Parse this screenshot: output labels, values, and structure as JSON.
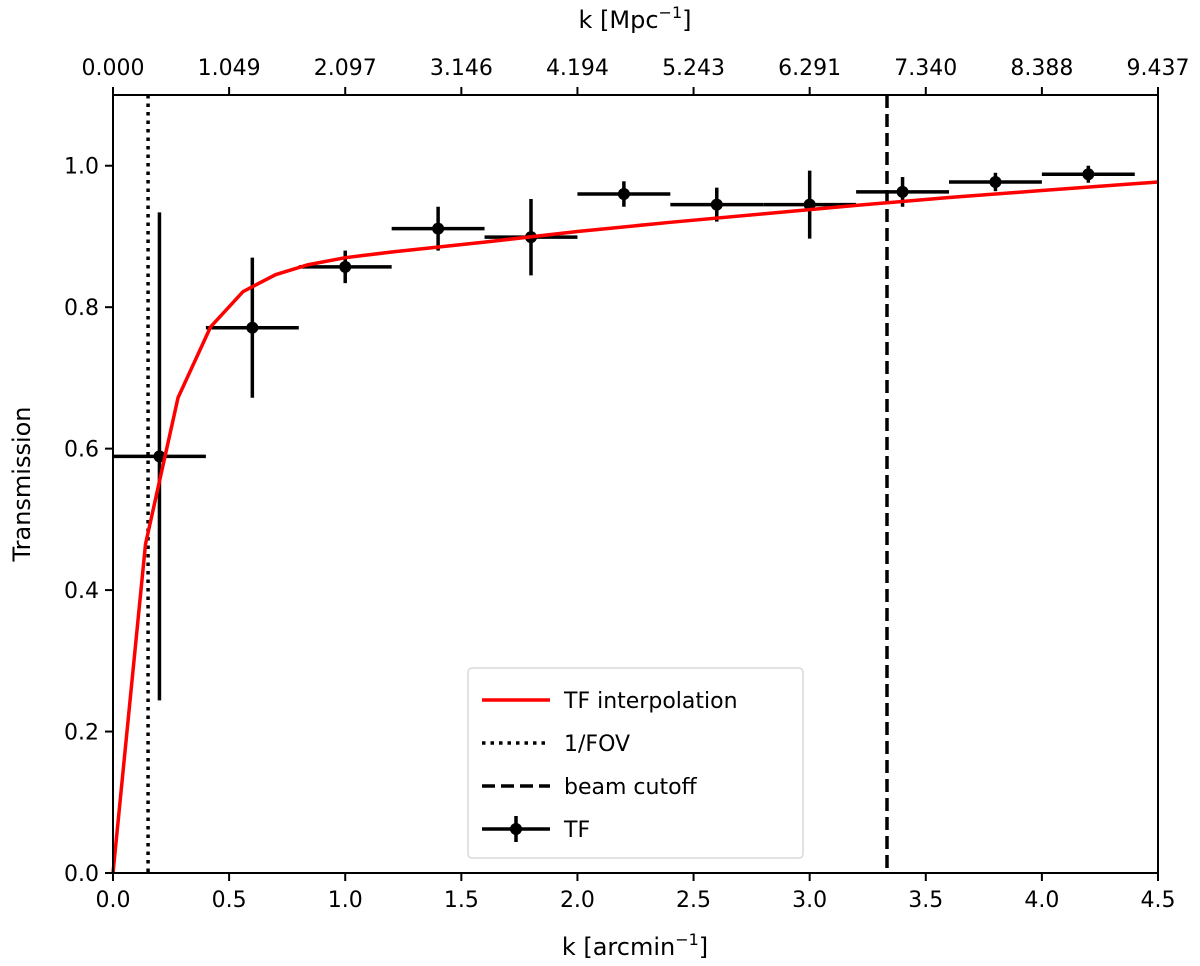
{
  "chart_data": {
    "type": "line",
    "xlabel": "k [arcmin",
    "xlabel_sup": "−1",
    "xlabel_end": "]",
    "top_xlabel": "k [Mpc",
    "top_xlabel_sup": "−1",
    "top_xlabel_end": "]",
    "ylabel": "Transmission",
    "xlim": [
      0,
      4.5
    ],
    "ylim": [
      0,
      1.1
    ],
    "x_ticks": [
      0.0,
      0.5,
      1.0,
      1.5,
      2.0,
      2.5,
      3.0,
      3.5,
      4.0,
      4.5
    ],
    "x_tick_labels": [
      "0.0",
      "0.5",
      "1.0",
      "1.5",
      "2.0",
      "2.5",
      "3.0",
      "3.5",
      "4.0",
      "4.5"
    ],
    "y_ticks": [
      0.0,
      0.2,
      0.4,
      0.6,
      0.8,
      1.0
    ],
    "y_tick_labels": [
      "0.0",
      "0.2",
      "0.4",
      "0.6",
      "0.8",
      "1.0"
    ],
    "top_x_ticks": [
      0.0,
      0.5,
      1.0,
      1.5,
      2.0,
      2.5,
      3.0,
      3.5,
      4.0,
      4.5
    ],
    "top_x_tick_labels": [
      "0.000",
      "1.049",
      "2.097",
      "3.146",
      "4.194",
      "5.243",
      "6.291",
      "7.340",
      "8.388",
      "9.437"
    ],
    "series": [
      {
        "name": "TF interpolation",
        "color": "#ff0000",
        "x": [
          0,
          0.14,
          0.28,
          0.42,
          0.56,
          0.7,
          0.84,
          1.0,
          1.2,
          1.6,
          2.0,
          2.4,
          2.8,
          3.2,
          3.6,
          4.0,
          4.5
        ],
        "y": [
          0,
          0.465,
          0.672,
          0.772,
          0.822,
          0.846,
          0.86,
          0.87,
          0.878,
          0.892,
          0.907,
          0.92,
          0.932,
          0.944,
          0.955,
          0.965,
          0.977
        ]
      },
      {
        "name": "TF",
        "color": "#000000",
        "x": [
          0.2,
          0.6,
          1.0,
          1.4,
          1.8,
          2.2,
          2.6,
          3.0,
          3.4,
          3.8,
          4.2
        ],
        "y": [
          0.589,
          0.771,
          0.857,
          0.911,
          0.899,
          0.96,
          0.945,
          0.945,
          0.963,
          0.977,
          0.988
        ],
        "xerr": 0.2,
        "yerr": [
          0.345,
          0.099,
          0.023,
          0.031,
          0.054,
          0.018,
          0.024,
          0.048,
          0.021,
          0.013,
          0.012
        ]
      }
    ],
    "vlines": [
      {
        "name": "1/FOV",
        "x": 0.151,
        "style": "dotted"
      },
      {
        "name": "beam cutoff",
        "x": 3.333,
        "style": "dashed"
      }
    ],
    "legend": {
      "placement": "lower-center",
      "entries": [
        "TF interpolation",
        "1/FOV",
        "beam cutoff",
        "TF"
      ]
    },
    "grid": false
  }
}
